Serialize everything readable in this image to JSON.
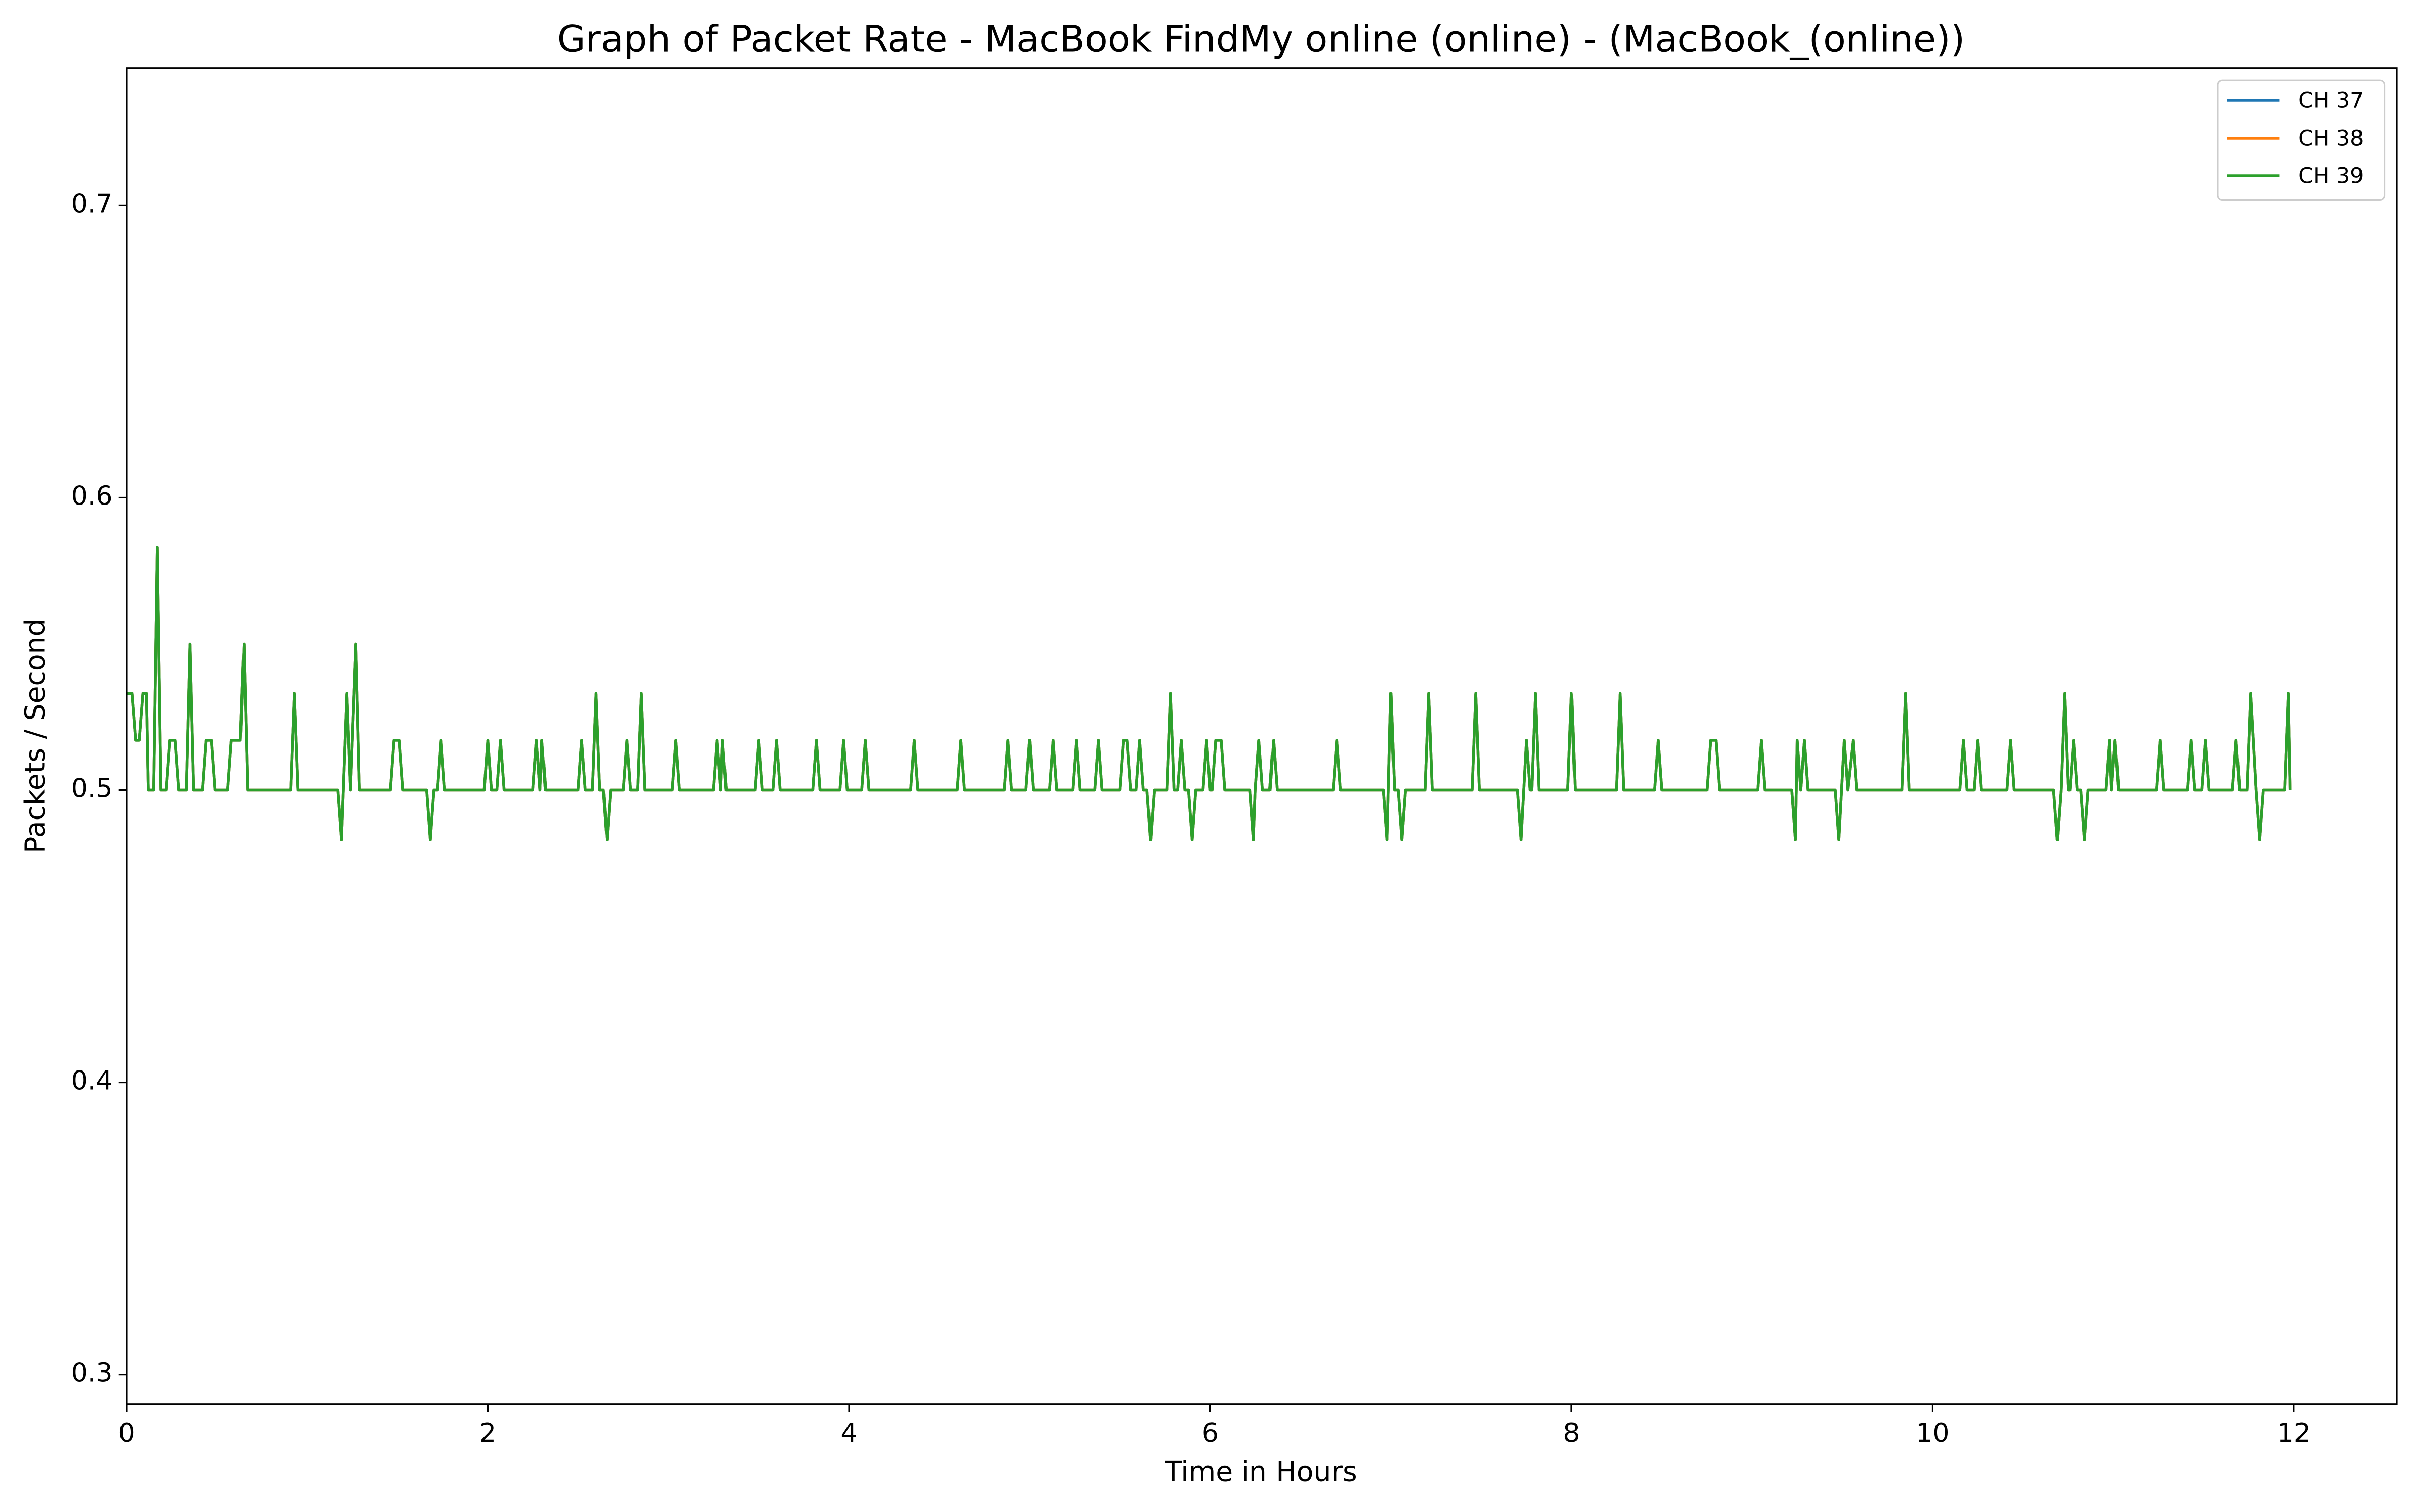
{
  "chart_data": {
    "type": "line",
    "title": "Graph of Packet Rate - MacBook FindMy online (online) - (MacBook_(online))",
    "x_label": "Time in Hours",
    "y_label": "Packets / Second",
    "xlim": [
      0,
      12.57
    ],
    "ylim": [
      0.29,
      0.747
    ],
    "xticks": [
      0,
      2,
      4,
      6,
      8,
      10,
      12
    ],
    "yticks": [
      0.3,
      0.4,
      0.5,
      0.6,
      0.7
    ],
    "legend": "upper right",
    "x": [
      0,
      0.03,
      0.05,
      0.07,
      0.09,
      0.11,
      0.12,
      0.15,
      0.17,
      0.19,
      0.22,
      0.24,
      0.27,
      0.29,
      0.33,
      0.35,
      0.37,
      0.42,
      0.44,
      0.47,
      0.49,
      0.56,
      0.58,
      0.63,
      0.65,
      0.67,
      0.91,
      0.93,
      0.95,
      1.17,
      1.19,
      1.22,
      1.24,
      1.27,
      1.29,
      1.46,
      1.48,
      1.51,
      1.53,
      1.66,
      1.68,
      1.7,
      1.72,
      1.74,
      1.76,
      1.98,
      2.0,
      2.02,
      2.05,
      2.07,
      2.09,
      2.25,
      2.27,
      2.29,
      2.3,
      2.32,
      2.5,
      2.52,
      2.54,
      2.58,
      2.6,
      2.62,
      2.64,
      2.66,
      2.68,
      2.75,
      2.77,
      2.79,
      2.83,
      2.85,
      2.87,
      3.02,
      3.04,
      3.06,
      3.25,
      3.27,
      3.29,
      3.3,
      3.32,
      3.48,
      3.5,
      3.52,
      3.58,
      3.6,
      3.62,
      3.8,
      3.82,
      3.84,
      3.95,
      3.97,
      3.99,
      4.07,
      4.09,
      4.11,
      4.34,
      4.36,
      4.38,
      4.6,
      4.62,
      4.64,
      4.86,
      4.88,
      4.9,
      4.98,
      5.0,
      5.02,
      5.11,
      5.13,
      5.15,
      5.24,
      5.26,
      5.28,
      5.36,
      5.38,
      5.4,
      5.5,
      5.52,
      5.54,
      5.56,
      5.59,
      5.61,
      5.63,
      5.65,
      5.67,
      5.69,
      5.76,
      5.78,
      5.8,
      5.82,
      5.84,
      5.86,
      5.88,
      5.9,
      5.92,
      5.96,
      5.98,
      6.0,
      6.01,
      6.03,
      6.06,
      6.08,
      6.22,
      6.24,
      6.25,
      6.27,
      6.29,
      6.33,
      6.35,
      6.37,
      6.68,
      6.7,
      6.72,
      6.96,
      6.98,
      7.0,
      7.02,
      7.04,
      7.06,
      7.08,
      7.19,
      7.21,
      7.23,
      7.45,
      7.47,
      7.49,
      7.7,
      7.72,
      7.75,
      7.77,
      7.78,
      7.8,
      7.82,
      7.98,
      8.0,
      8.02,
      8.25,
      8.27,
      8.29,
      8.46,
      8.48,
      8.5,
      8.75,
      8.77,
      8.8,
      8.82,
      9.03,
      9.05,
      9.07,
      9.22,
      9.24,
      9.25,
      9.27,
      9.29,
      9.31,
      9.46,
      9.48,
      9.51,
      9.53,
      9.56,
      9.58,
      9.83,
      9.85,
      9.87,
      10.15,
      10.17,
      10.19,
      10.23,
      10.25,
      10.27,
      10.41,
      10.43,
      10.45,
      10.67,
      10.69,
      10.71,
      10.73,
      10.75,
      10.76,
      10.78,
      10.8,
      10.82,
      10.84,
      10.86,
      10.96,
      10.98,
      10.99,
      11.01,
      11.03,
      11.24,
      11.26,
      11.28,
      11.41,
      11.43,
      11.45,
      11.49,
      11.51,
      11.53,
      11.66,
      11.68,
      11.7,
      11.74,
      11.76,
      11.79,
      11.81,
      11.83,
      11.95,
      11.97,
      11.98
    ],
    "series": [
      {
        "name": "CH 37",
        "color": "#1f77b4",
        "values": [
          0.533,
          0.533,
          0.517,
          0.517,
          0.533,
          0.533,
          0.5,
          0.5,
          0.583,
          0.5,
          0.5,
          0.517,
          0.517,
          0.5,
          0.5,
          0.55,
          0.5,
          0.5,
          0.517,
          0.517,
          0.5,
          0.5,
          0.517,
          0.517,
          0.55,
          0.5,
          0.5,
          0.533,
          0.5,
          0.5,
          0.483,
          0.533,
          0.5,
          0.55,
          0.5,
          0.5,
          0.517,
          0.517,
          0.5,
          0.5,
          0.483,
          0.5,
          0.5,
          0.517,
          0.5,
          0.5,
          0.517,
          0.5,
          0.5,
          0.517,
          0.5,
          0.5,
          0.517,
          0.5,
          0.517,
          0.5,
          0.5,
          0.517,
          0.5,
          0.5,
          0.533,
          0.5,
          0.5,
          0.483,
          0.5,
          0.5,
          0.517,
          0.5,
          0.5,
          0.533,
          0.5,
          0.5,
          0.517,
          0.5,
          0.5,
          0.517,
          0.5,
          0.517,
          0.5,
          0.5,
          0.517,
          0.5,
          0.5,
          0.517,
          0.5,
          0.5,
          0.517,
          0.5,
          0.5,
          0.517,
          0.5,
          0.5,
          0.517,
          0.5,
          0.5,
          0.517,
          0.5,
          0.5,
          0.517,
          0.5,
          0.5,
          0.517,
          0.5,
          0.5,
          0.517,
          0.5,
          0.5,
          0.517,
          0.5,
          0.5,
          0.517,
          0.5,
          0.5,
          0.517,
          0.5,
          0.5,
          0.517,
          0.517,
          0.5,
          0.5,
          0.517,
          0.5,
          0.5,
          0.483,
          0.5,
          0.5,
          0.533,
          0.5,
          0.5,
          0.517,
          0.5,
          0.5,
          0.483,
          0.5,
          0.5,
          0.517,
          0.5,
          0.5,
          0.517,
          0.517,
          0.5,
          0.5,
          0.483,
          0.5,
          0.517,
          0.5,
          0.5,
          0.517,
          0.5,
          0.5,
          0.517,
          0.5,
          0.5,
          0.483,
          0.533,
          0.5,
          0.5,
          0.483,
          0.5,
          0.5,
          0.533,
          0.5,
          0.5,
          0.533,
          0.5,
          0.5,
          0.483,
          0.517,
          0.5,
          0.5,
          0.533,
          0.5,
          0.5,
          0.533,
          0.5,
          0.5,
          0.533,
          0.5,
          0.5,
          0.517,
          0.5,
          0.5,
          0.517,
          0.517,
          0.5,
          0.5,
          0.517,
          0.5,
          0.5,
          0.483,
          0.517,
          0.5,
          0.517,
          0.5,
          0.5,
          0.483,
          0.517,
          0.5,
          0.517,
          0.5,
          0.5,
          0.533,
          0.5,
          0.5,
          0.517,
          0.5,
          0.5,
          0.517,
          0.5,
          0.5,
          0.517,
          0.5,
          0.5,
          0.483,
          0.5,
          0.533,
          0.5,
          0.5,
          0.517,
          0.5,
          0.5,
          0.483,
          0.5,
          0.5,
          0.517,
          0.5,
          0.517,
          0.5,
          0.5,
          0.517,
          0.5,
          0.5,
          0.517,
          0.5,
          0.5,
          0.517,
          0.5,
          0.5,
          0.517,
          0.5,
          0.5,
          0.533,
          0.5,
          0.483,
          0.5,
          0.5,
          0.533,
          0.5
        ]
      },
      {
        "name": "CH 38",
        "color": "#ff7f0e",
        "values": [
          0.533,
          0.533,
          0.517,
          0.517,
          0.533,
          0.533,
          0.5,
          0.5,
          0.583,
          0.5,
          0.5,
          0.517,
          0.517,
          0.5,
          0.5,
          0.55,
          0.5,
          0.5,
          0.517,
          0.517,
          0.5,
          0.5,
          0.517,
          0.517,
          0.55,
          0.5,
          0.5,
          0.533,
          0.5,
          0.5,
          0.483,
          0.533,
          0.5,
          0.55,
          0.5,
          0.5,
          0.517,
          0.517,
          0.5,
          0.5,
          0.483,
          0.5,
          0.5,
          0.517,
          0.5,
          0.5,
          0.517,
          0.5,
          0.5,
          0.517,
          0.5,
          0.5,
          0.517,
          0.5,
          0.517,
          0.5,
          0.5,
          0.517,
          0.5,
          0.5,
          0.533,
          0.5,
          0.5,
          0.483,
          0.5,
          0.5,
          0.517,
          0.5,
          0.5,
          0.533,
          0.5,
          0.5,
          0.517,
          0.5,
          0.5,
          0.517,
          0.5,
          0.517,
          0.5,
          0.5,
          0.517,
          0.5,
          0.5,
          0.517,
          0.5,
          0.5,
          0.517,
          0.5,
          0.5,
          0.517,
          0.5,
          0.5,
          0.517,
          0.5,
          0.5,
          0.517,
          0.5,
          0.5,
          0.517,
          0.5,
          0.5,
          0.517,
          0.5,
          0.5,
          0.517,
          0.5,
          0.5,
          0.517,
          0.5,
          0.5,
          0.517,
          0.5,
          0.5,
          0.517,
          0.5,
          0.5,
          0.517,
          0.517,
          0.5,
          0.5,
          0.517,
          0.5,
          0.5,
          0.483,
          0.5,
          0.5,
          0.533,
          0.5,
          0.5,
          0.517,
          0.5,
          0.5,
          0.483,
          0.5,
          0.5,
          0.517,
          0.5,
          0.5,
          0.517,
          0.517,
          0.5,
          0.5,
          0.483,
          0.5,
          0.517,
          0.5,
          0.5,
          0.517,
          0.5,
          0.5,
          0.517,
          0.5,
          0.5,
          0.483,
          0.533,
          0.5,
          0.5,
          0.483,
          0.5,
          0.5,
          0.533,
          0.5,
          0.5,
          0.533,
          0.5,
          0.5,
          0.483,
          0.517,
          0.5,
          0.5,
          0.533,
          0.5,
          0.5,
          0.533,
          0.5,
          0.5,
          0.533,
          0.5,
          0.5,
          0.517,
          0.5,
          0.5,
          0.517,
          0.517,
          0.5,
          0.5,
          0.517,
          0.5,
          0.5,
          0.483,
          0.517,
          0.5,
          0.517,
          0.5,
          0.5,
          0.483,
          0.517,
          0.5,
          0.517,
          0.5,
          0.5,
          0.533,
          0.5,
          0.5,
          0.517,
          0.5,
          0.5,
          0.517,
          0.5,
          0.5,
          0.517,
          0.5,
          0.5,
          0.483,
          0.5,
          0.533,
          0.5,
          0.5,
          0.517,
          0.5,
          0.5,
          0.483,
          0.5,
          0.5,
          0.517,
          0.5,
          0.517,
          0.5,
          0.5,
          0.517,
          0.5,
          0.5,
          0.517,
          0.5,
          0.5,
          0.517,
          0.5,
          0.5,
          0.517,
          0.5,
          0.5,
          0.533,
          0.5,
          0.483,
          0.5,
          0.5,
          0.533,
          0.5
        ]
      },
      {
        "name": "CH 39",
        "color": "#2ca02c",
        "values": [
          0.533,
          0.533,
          0.517,
          0.517,
          0.533,
          0.533,
          0.5,
          0.5,
          0.583,
          0.5,
          0.5,
          0.517,
          0.517,
          0.5,
          0.5,
          0.55,
          0.5,
          0.5,
          0.517,
          0.517,
          0.5,
          0.5,
          0.517,
          0.517,
          0.55,
          0.5,
          0.5,
          0.533,
          0.5,
          0.5,
          0.483,
          0.533,
          0.5,
          0.55,
          0.5,
          0.5,
          0.517,
          0.517,
          0.5,
          0.5,
          0.483,
          0.5,
          0.5,
          0.517,
          0.5,
          0.5,
          0.517,
          0.5,
          0.5,
          0.517,
          0.5,
          0.5,
          0.517,
          0.5,
          0.517,
          0.5,
          0.5,
          0.517,
          0.5,
          0.5,
          0.533,
          0.5,
          0.5,
          0.483,
          0.5,
          0.5,
          0.517,
          0.5,
          0.5,
          0.533,
          0.5,
          0.5,
          0.517,
          0.5,
          0.5,
          0.517,
          0.5,
          0.517,
          0.5,
          0.5,
          0.517,
          0.5,
          0.5,
          0.517,
          0.5,
          0.5,
          0.517,
          0.5,
          0.5,
          0.517,
          0.5,
          0.5,
          0.517,
          0.5,
          0.5,
          0.517,
          0.5,
          0.5,
          0.517,
          0.5,
          0.5,
          0.517,
          0.5,
          0.5,
          0.517,
          0.5,
          0.5,
          0.517,
          0.5,
          0.5,
          0.517,
          0.5,
          0.5,
          0.517,
          0.5,
          0.5,
          0.517,
          0.517,
          0.5,
          0.5,
          0.517,
          0.5,
          0.5,
          0.483,
          0.5,
          0.5,
          0.533,
          0.5,
          0.5,
          0.517,
          0.5,
          0.5,
          0.483,
          0.5,
          0.5,
          0.517,
          0.5,
          0.5,
          0.517,
          0.517,
          0.5,
          0.5,
          0.483,
          0.5,
          0.517,
          0.5,
          0.5,
          0.517,
          0.5,
          0.5,
          0.517,
          0.5,
          0.5,
          0.483,
          0.533,
          0.5,
          0.5,
          0.483,
          0.5,
          0.5,
          0.533,
          0.5,
          0.5,
          0.533,
          0.5,
          0.5,
          0.483,
          0.517,
          0.5,
          0.5,
          0.533,
          0.5,
          0.5,
          0.533,
          0.5,
          0.5,
          0.533,
          0.5,
          0.5,
          0.517,
          0.5,
          0.5,
          0.517,
          0.517,
          0.5,
          0.5,
          0.517,
          0.5,
          0.5,
          0.483,
          0.517,
          0.5,
          0.517,
          0.5,
          0.5,
          0.483,
          0.517,
          0.5,
          0.517,
          0.5,
          0.5,
          0.533,
          0.5,
          0.5,
          0.517,
          0.5,
          0.5,
          0.517,
          0.5,
          0.5,
          0.517,
          0.5,
          0.5,
          0.483,
          0.5,
          0.533,
          0.5,
          0.5,
          0.517,
          0.5,
          0.5,
          0.483,
          0.5,
          0.5,
          0.517,
          0.5,
          0.517,
          0.5,
          0.5,
          0.517,
          0.5,
          0.5,
          0.517,
          0.5,
          0.5,
          0.517,
          0.5,
          0.5,
          0.517,
          0.5,
          0.5,
          0.533,
          0.5,
          0.483,
          0.5,
          0.5,
          0.533,
          0.5
        ]
      }
    ]
  }
}
